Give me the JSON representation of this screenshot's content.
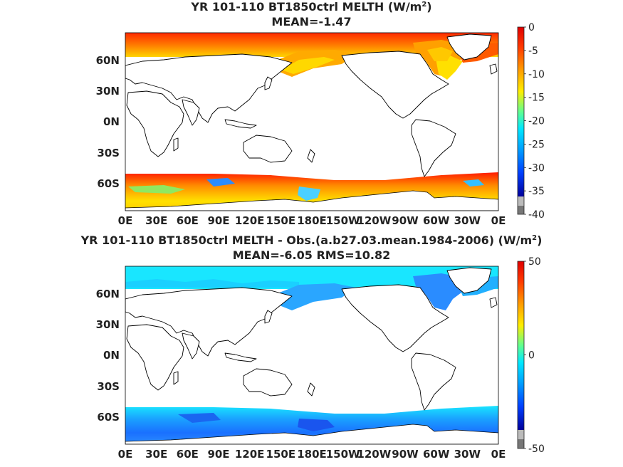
{
  "panels": [
    {
      "title_main": "YR 101-110 BT1850ctrl  MELTH (W/m",
      "title_sup": "2",
      "title_end": ")",
      "subtitle": "MEAN=-1.47",
      "colorbar": {
        "ticks": [
          "0",
          "-5",
          "-10",
          "-15",
          "-20",
          "-25",
          "-30",
          "-35",
          "-40"
        ],
        "min": -40,
        "max": 0,
        "palette": "jet"
      }
    },
    {
      "title_main": "YR 101-110 BT1850ctrl MELTH - Obs.(a.b27.03.mean.1984-2006) (W/m",
      "title_sup": "2",
      "title_end": ")",
      "subtitle": "MEAN=-6.05 RMS=10.82",
      "colorbar": {
        "ticks": [
          "50",
          "0",
          "-50"
        ],
        "min": -50,
        "max": 50,
        "palette": "jet"
      }
    }
  ],
  "axes": {
    "x_ticks": [
      "0E",
      "30E",
      "60E",
      "90E",
      "120E",
      "150E",
      "180E",
      "150W",
      "120W",
      "90W",
      "60W",
      "30W",
      "0E"
    ],
    "y_ticks": [
      "60N",
      "30N",
      "0N",
      "30S",
      "60S"
    ]
  }
}
